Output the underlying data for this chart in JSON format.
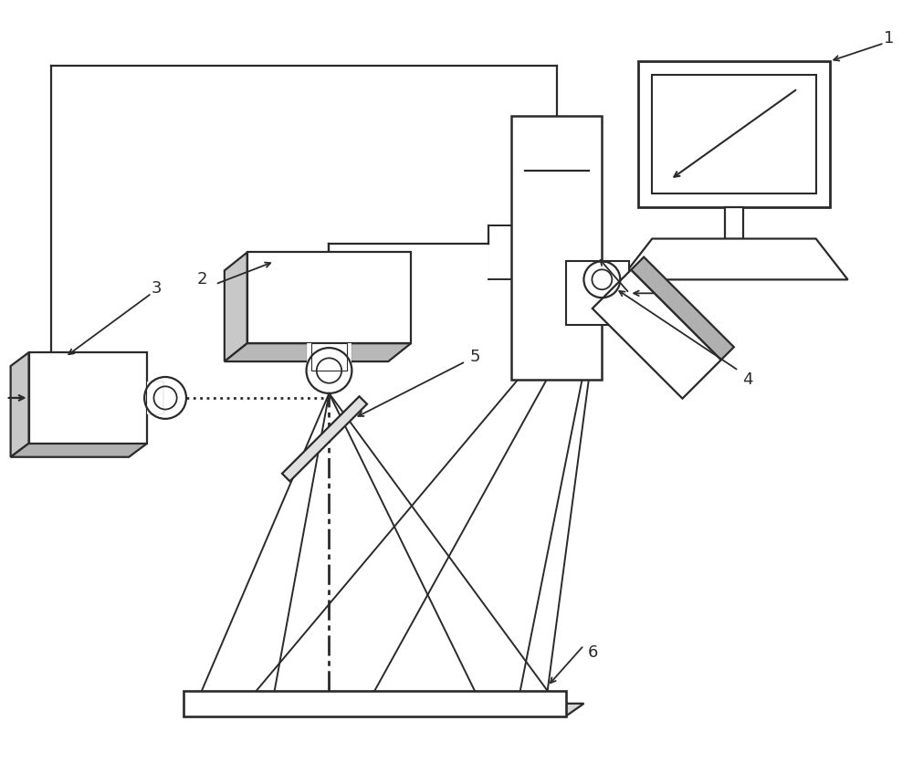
{
  "fig_width": 10.0,
  "fig_height": 8.36,
  "dpi": 100,
  "bg_color": "#ffffff",
  "line_color": "#2a2a2a",
  "line_width": 1.6,
  "shadow_color": "#aaaaaa",
  "label_1": "1",
  "label_2": "2",
  "label_3": "3",
  "label_4": "4",
  "label_5": "5",
  "label_6": "6",
  "xlim": [
    0,
    100
  ],
  "ylim": [
    0,
    83.6
  ]
}
